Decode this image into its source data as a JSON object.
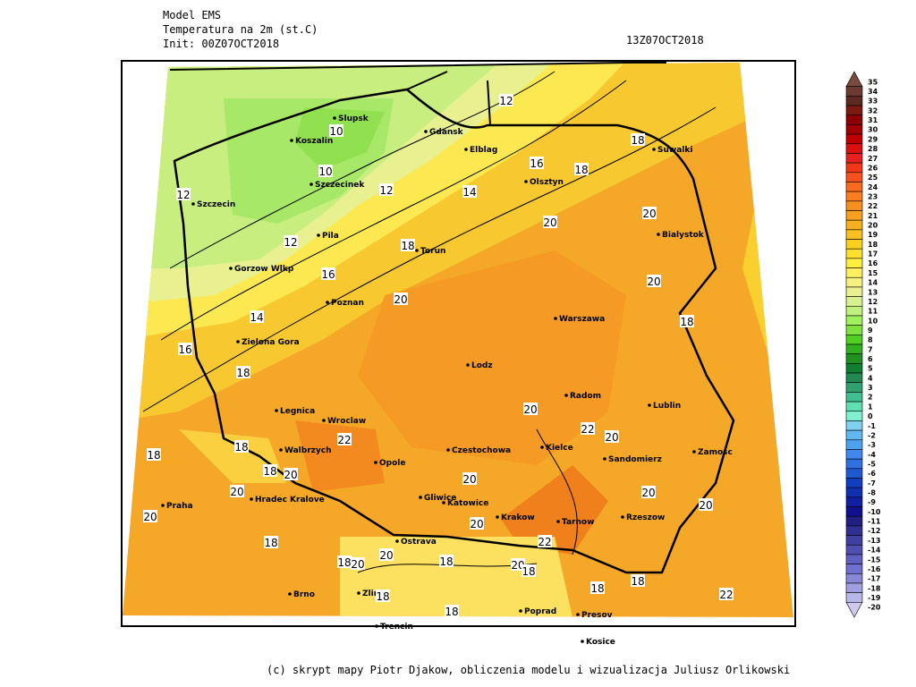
{
  "header": {
    "model": "Model EMS",
    "variable": "Temperatura na 2m (st.C)",
    "init": "Init: 00Z07OCT2018",
    "valid": "13Z07OCT2018"
  },
  "cities": [
    "Slupsk",
    "Koszalin",
    "Gdansk",
    "Elblag",
    "Szczecinek",
    "Szczecin",
    "Pila",
    "Torun",
    "Olsztyn",
    "Suwalki",
    "Bialystok",
    "Gorzow Wlkp",
    "Poznan",
    "Warszawa",
    "Zielona Gora",
    "Lodz",
    "Radom",
    "Lublin",
    "Legnica",
    "Wroclaw",
    "Walbrzych",
    "Opole",
    "Czestochowa",
    "Kielce",
    "Sandomierz",
    "Zamosc",
    "Gliwice",
    "Katowice",
    "Krakow",
    "Tarnow",
    "Rzeszow",
    "Praha",
    "Hradec Kralove",
    "Ostrava",
    "Brno",
    "Zlin",
    "Poprad",
    "Presov",
    "Trencin",
    "Kosice"
  ],
  "contour_labels": [
    "12",
    "10",
    "18",
    "16",
    "18",
    "10",
    "12",
    "12",
    "14",
    "20",
    "20",
    "12",
    "18",
    "16",
    "20",
    "20",
    "14",
    "18",
    "16",
    "18",
    "20",
    "22",
    "20",
    "22",
    "18",
    "18",
    "18",
    "20",
    "20",
    "20",
    "20",
    "20",
    "20",
    "20",
    "22",
    "18",
    "20",
    "18",
    "20",
    "18",
    "20",
    "18",
    "18",
    "18",
    "22",
    "18",
    "18"
  ],
  "colorbar": {
    "levels": [
      35,
      34,
      33,
      32,
      31,
      30,
      29,
      28,
      27,
      26,
      25,
      24,
      23,
      22,
      21,
      20,
      19,
      18,
      17,
      16,
      15,
      14,
      13,
      12,
      11,
      10,
      9,
      8,
      7,
      6,
      5,
      4,
      3,
      2,
      1,
      0,
      -1,
      -2,
      -3,
      -4,
      -5,
      -6,
      -7,
      -8,
      -9,
      -10,
      -11,
      -12,
      -13,
      -14,
      -15,
      -16,
      -17,
      -18,
      -19,
      -20
    ],
    "colors": [
      "#7a4a3e",
      "#6b3a30",
      "#5c2a20",
      "#7a1a10",
      "#8b0000",
      "#a00000",
      "#c00000",
      "#d81010",
      "#e82020",
      "#f03818",
      "#f85020",
      "#fa6a20",
      "#fa7d20",
      "#f59020",
      "#f5a020",
      "#f5b020",
      "#f8c020",
      "#fad020",
      "#fce030",
      "#fff040",
      "#fff060",
      "#f5f080",
      "#e8f090",
      "#d8f090",
      "#c0f080",
      "#a0f060",
      "#80e040",
      "#50d020",
      "#30b020",
      "#209020",
      "#108030",
      "#208a50",
      "#30a070",
      "#40c090",
      "#60e0b0",
      "#80f0d0",
      "#80d0f0",
      "#60b8f0",
      "#50a0f0",
      "#4088f0",
      "#3070e0",
      "#2058d0",
      "#1040c0",
      "#1030b0",
      "#1020a0",
      "#101090",
      "#202080",
      "#303090",
      "#4040a0",
      "#5050b0",
      "#6060c0",
      "#7070d0",
      "#8888d8",
      "#a0a0e0",
      "#b8b8e8",
      "#d0c8f0"
    ]
  },
  "footer": "(c) skrypt mapy Piotr Djakow, obliczenia modelu i wizualizacja Juliusz Orlikowski"
}
